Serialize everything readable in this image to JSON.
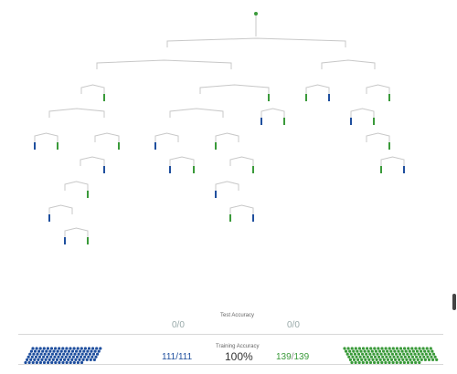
{
  "colors": {
    "edge": "#c8c8c8",
    "blue": "#1f4f9e",
    "green": "#3a9a3a",
    "root": "#3a9a3a"
  },
  "test_section": {
    "label": "Test Accuracy",
    "left_score": "0/0",
    "right_score": "0/0"
  },
  "train_section": {
    "label": "Training Accuracy",
    "left_correct": "111",
    "left_total": "111",
    "right_correct": "139",
    "right_total": "139",
    "percent": "100%"
  },
  "left_dot_pile": {
    "class_color": "blue",
    "count": 111
  },
  "right_dot_pile": {
    "class_color": "green",
    "count": 139
  }
}
